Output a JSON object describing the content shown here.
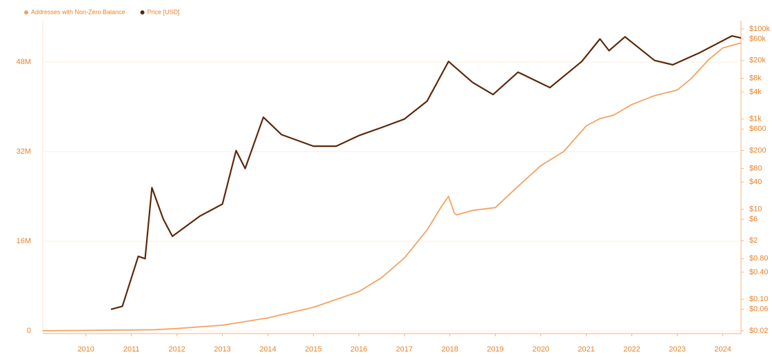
{
  "chart_data": {
    "type": "line",
    "legend": "top-left",
    "grid": true,
    "xlim": [
      2009.05,
      2024.4
    ],
    "xticks": [
      2010,
      2011,
      2012,
      2013,
      2014,
      2015,
      2016,
      2017,
      2018,
      2019,
      2020,
      2021,
      2022,
      2023,
      2024
    ],
    "ylim": [
      0,
      53900000
    ],
    "yticks": [
      0,
      {
        "value": 16000000,
        "label": "16M"
      },
      {
        "value": 32000000,
        "label": "32M"
      },
      {
        "value": 48000000,
        "label": "48M"
      }
    ],
    "y2scale": "log",
    "y2lim": [
      0.02,
      100000
    ],
    "y2ticks": [
      {
        "value": 100000,
        "label": "$100k"
      },
      {
        "value": 60000,
        "label": "$60k"
      },
      {
        "value": 20000,
        "label": "$20k"
      },
      {
        "value": 8000,
        "label": "$8k"
      },
      {
        "value": 4000,
        "label": "$4k"
      },
      {
        "value": 1000,
        "label": "$1k"
      },
      {
        "value": 600,
        "label": "$600"
      },
      {
        "value": 200,
        "label": "$200"
      },
      {
        "value": 80,
        "label": "$80"
      },
      {
        "value": 40,
        "label": "$40"
      },
      {
        "value": 10,
        "label": "$10"
      },
      {
        "value": 6,
        "label": "$6"
      },
      {
        "value": 2,
        "label": "$2"
      },
      {
        "value": 0.8,
        "label": "$0.80"
      },
      {
        "value": 0.4,
        "label": "$0.40"
      },
      {
        "value": 0.1,
        "label": "$0.10"
      },
      {
        "value": 0.06,
        "label": "$0.06"
      },
      {
        "value": 0.02,
        "label": "$0.02"
      }
    ],
    "series": [
      {
        "name": "Addresses with Non-Zero Balance",
        "color": "#f3a261",
        "x": [
          2009.05,
          2011.5,
          2012,
          2013,
          2014,
          2015,
          2016,
          2016.5,
          2017,
          2017.5,
          2017.8,
          2017.97,
          2018.1,
          2018.15,
          2018.5,
          2019,
          2019.5,
          2020,
          2020.5,
          2021,
          2021.3,
          2021.6,
          2022,
          2022.5,
          2023,
          2023.3,
          2023.7,
          2024,
          2024.4
        ],
        "values": [
          0,
          200000,
          400000,
          1000000,
          2300000,
          4200000,
          7000000,
          9500000,
          13000000,
          18000000,
          22000000,
          24000000,
          21000000,
          20700000,
          21500000,
          22000000,
          25800000,
          29500000,
          32000000,
          36600000,
          37900000,
          38500000,
          40400000,
          42000000,
          43000000,
          45000000,
          48500000,
          50500000,
          51400000
        ]
      },
      {
        "name": "Price [USD]",
        "color": "#5a2808",
        "axis": "y2",
        "x": [
          2010.55,
          2010.8,
          2011.0,
          2011.15,
          2011.3,
          2011.45,
          2011.7,
          2011.9,
          2012.5,
          2013.0,
          2013.3,
          2013.5,
          2013.9,
          2014.3,
          2015.0,
          2015.5,
          2016.0,
          2016.5,
          2017.0,
          2017.5,
          2017.97,
          2018.5,
          2018.95,
          2019.5,
          2020.2,
          2020.9,
          2021.3,
          2021.5,
          2021.85,
          2022.5,
          2022.9,
          2023.5,
          2024.2,
          2024.4
        ],
        "values": [
          0.06,
          0.07,
          0.3,
          0.9,
          0.8,
          30,
          6,
          2.5,
          7,
          13,
          200,
          80,
          1100,
          450,
          250,
          250,
          430,
          650,
          1000,
          2500,
          19000,
          6500,
          3500,
          11000,
          5000,
          19000,
          60000,
          33000,
          67000,
          20000,
          16000,
          30000,
          70000,
          63000
        ]
      }
    ]
  }
}
